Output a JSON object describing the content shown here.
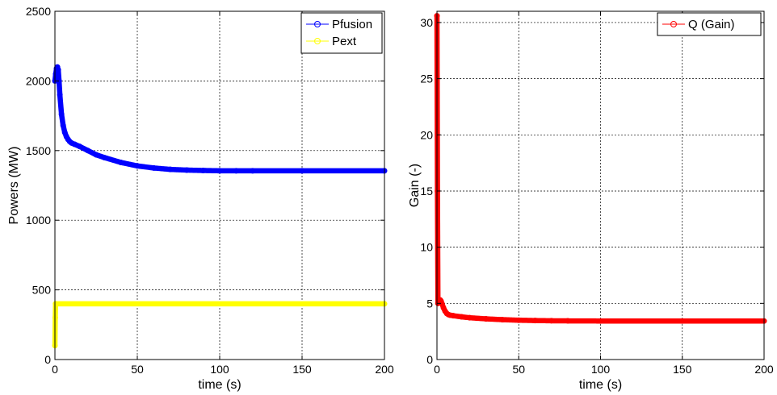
{
  "chart_data": [
    {
      "type": "line",
      "title": "",
      "xlabel": "time (s)",
      "ylabel": "Powers (MW)",
      "xlim": [
        0,
        200
      ],
      "ylim": [
        0,
        2500
      ],
      "xticks": [
        0,
        50,
        100,
        150,
        200
      ],
      "yticks": [
        0,
        500,
        1000,
        1500,
        2000,
        2500
      ],
      "grid": true,
      "legend_position": "top-right",
      "series": [
        {
          "name": "Pfusion",
          "color": "#0000ff",
          "marker": "circle",
          "x": [
            0,
            0.5,
            1,
            1.5,
            2,
            2.5,
            3,
            4,
            5,
            6,
            7,
            8,
            9,
            10,
            12,
            15,
            20,
            25,
            30,
            40,
            50,
            60,
            70,
            80,
            90,
            100,
            110,
            120,
            150,
            200
          ],
          "y": [
            2000,
            2050,
            2090,
            2100,
            2080,
            2000,
            1900,
            1760,
            1680,
            1630,
            1600,
            1580,
            1565,
            1555,
            1545,
            1530,
            1500,
            1470,
            1450,
            1415,
            1390,
            1375,
            1365,
            1360,
            1357,
            1355,
            1355,
            1355,
            1355,
            1355
          ]
        },
        {
          "name": "Pext",
          "color": "#ffff00",
          "marker": "circle",
          "x": [
            0,
            0.2,
            0.4,
            200
          ],
          "y": [
            100,
            300,
            400,
            400
          ]
        }
      ]
    },
    {
      "type": "line",
      "title": "",
      "xlabel": "time (s)",
      "ylabel": "Gain (-)",
      "xlim": [
        0,
        200
      ],
      "ylim": [
        0,
        31
      ],
      "xticks": [
        0,
        50,
        100,
        150,
        200
      ],
      "yticks": [
        0,
        5,
        10,
        15,
        20,
        25,
        30
      ],
      "grid": true,
      "legend_position": "top-right",
      "series": [
        {
          "name": "Q (Gain)",
          "color": "#ff0000",
          "marker": "circle",
          "x": [
            0,
            0.3,
            0.6,
            1,
            1.5,
            2,
            2.5,
            3,
            4,
            5,
            6,
            7,
            8,
            10,
            15,
            20,
            30,
            40,
            50,
            60,
            70,
            80,
            100,
            150,
            200
          ],
          "y": [
            30.6,
            15,
            5.0,
            5.1,
            5.25,
            5.3,
            5.2,
            5.0,
            4.6,
            4.3,
            4.1,
            4.0,
            3.95,
            3.9,
            3.8,
            3.72,
            3.62,
            3.55,
            3.5,
            3.47,
            3.45,
            3.44,
            3.43,
            3.43,
            3.43
          ]
        }
      ]
    }
  ]
}
